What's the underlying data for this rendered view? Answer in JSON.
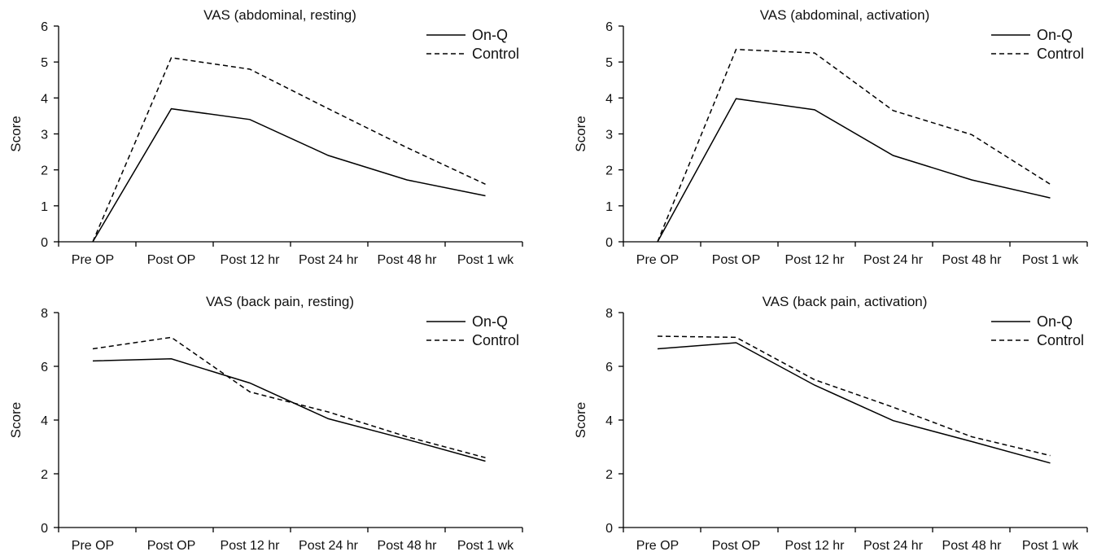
{
  "chart_data": [
    {
      "type": "line",
      "title": "VAS (abdominal, resting)",
      "ylabel": "Score",
      "xlabel": "",
      "categories": [
        "Pre OP",
        "Post OP",
        "Post 12 hr",
        "Post 24 hr",
        "Post 48 hr",
        "Post 1 wk"
      ],
      "ylim": [
        0,
        6
      ],
      "yticks": [
        0,
        1,
        2,
        3,
        4,
        5,
        6
      ],
      "grid": false,
      "legend": "top-right",
      "series": [
        {
          "name": "On-Q",
          "style": "solid",
          "values": [
            0,
            3.7,
            3.4,
            2.4,
            1.72,
            1.28
          ]
        },
        {
          "name": "Control",
          "style": "dashed",
          "values": [
            0,
            5.12,
            4.8,
            3.7,
            2.62,
            1.6
          ]
        }
      ]
    },
    {
      "type": "line",
      "title": "VAS (abdominal, activation)",
      "ylabel": "Score",
      "xlabel": "",
      "categories": [
        "Pre OP",
        "Post OP",
        "Post 12 hr",
        "Post 24 hr",
        "Post 48 hr",
        "Post 1 wk"
      ],
      "ylim": [
        0,
        6
      ],
      "yticks": [
        0,
        1,
        2,
        3,
        4,
        5,
        6
      ],
      "grid": false,
      "legend": "top-right",
      "series": [
        {
          "name": "On-Q",
          "style": "solid",
          "values": [
            0,
            3.98,
            3.67,
            2.4,
            1.72,
            1.22
          ]
        },
        {
          "name": "Control",
          "style": "dashed",
          "values": [
            0,
            5.35,
            5.25,
            3.65,
            2.98,
            1.6
          ]
        }
      ]
    },
    {
      "type": "line",
      "title": "VAS (back pain, resting)",
      "ylabel": "Score",
      "xlabel": "",
      "categories": [
        "Pre OP",
        "Post OP",
        "Post 12 hr",
        "Post 24 hr",
        "Post 48 hr",
        "Post 1 wk"
      ],
      "ylim": [
        0,
        8
      ],
      "yticks": [
        0,
        2,
        4,
        6,
        8
      ],
      "grid": false,
      "legend": "top-right",
      "series": [
        {
          "name": "On-Q",
          "style": "solid",
          "values": [
            6.2,
            6.28,
            5.38,
            4.05,
            3.28,
            2.47
          ]
        },
        {
          "name": "Control",
          "style": "dashed",
          "values": [
            6.65,
            7.08,
            5.05,
            4.3,
            3.38,
            2.6
          ]
        }
      ]
    },
    {
      "type": "line",
      "title": "VAS (back pain, activation)",
      "ylabel": "Score",
      "xlabel": "",
      "categories": [
        "Pre OP",
        "Post OP",
        "Post 12 hr",
        "Post 24 hr",
        "Post 48 hr",
        "Post 1 wk"
      ],
      "ylim": [
        0,
        8
      ],
      "yticks": [
        0,
        2,
        4,
        6,
        8
      ],
      "grid": false,
      "legend": "top-right",
      "series": [
        {
          "name": "On-Q",
          "style": "solid",
          "values": [
            6.65,
            6.88,
            5.3,
            3.98,
            3.2,
            2.4
          ]
        },
        {
          "name": "Control",
          "style": "dashed",
          "values": [
            7.12,
            7.08,
            5.5,
            4.48,
            3.38,
            2.68
          ]
        }
      ]
    }
  ]
}
